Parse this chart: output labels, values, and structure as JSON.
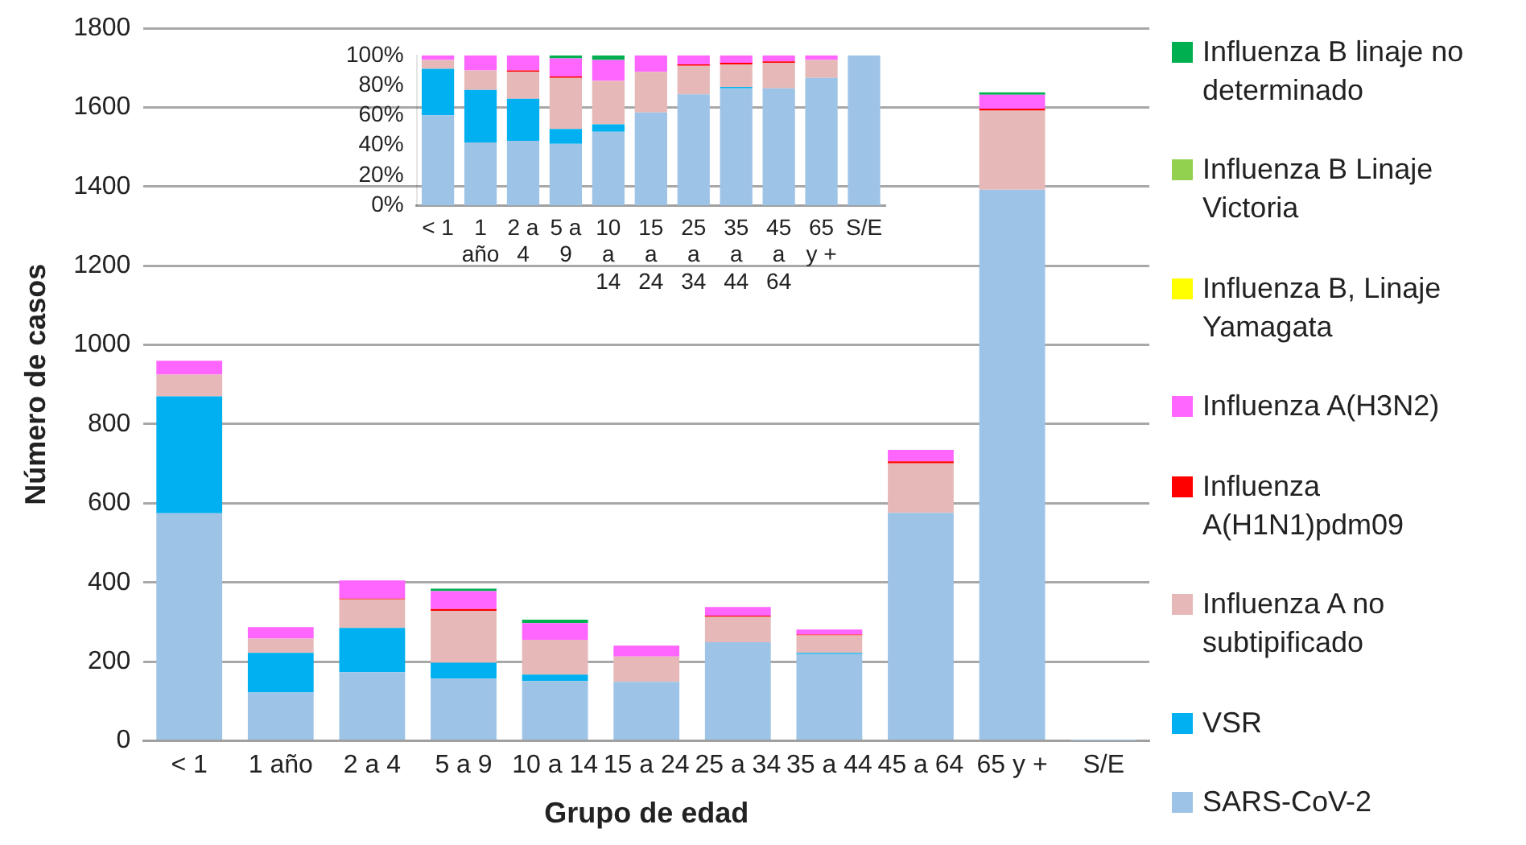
{
  "chart_data": [
    {
      "type": "bar",
      "stacked": true,
      "xlabel": "Grupo de edad",
      "ylabel": "Número de casos",
      "categories": [
        "< 1",
        "1 año",
        "2 a 4",
        "5 a 9",
        "10 a 14",
        "15 a 24",
        "25 a 34",
        "35 a 44",
        "45 a 64",
        "65 y +",
        "S/E"
      ],
      "ylim": [
        0,
        1800
      ],
      "yticks": [
        0,
        200,
        400,
        600,
        800,
        1000,
        1200,
        1400,
        1600,
        1800
      ],
      "grid": "y",
      "legend": "right",
      "series": [
        {
          "name": "SARS-CoV-2",
          "color": "#9dc3e6",
          "values": [
            575,
            122,
            173,
            157,
            151,
            149,
            249,
            219,
            576,
            1392,
            1
          ]
        },
        {
          "name": "VSR",
          "color": "#00b0f0",
          "values": [
            295,
            100,
            112,
            40,
            16,
            0,
            0,
            3,
            0,
            0,
            0
          ]
        },
        {
          "name": "Influenza A no subtipificado",
          "color": "#e6b9b8",
          "values": [
            55,
            36,
            72,
            131,
            88,
            64,
            64,
            44,
            125,
            200,
            0
          ]
        },
        {
          "name": "Influenza A(H1N1)pdm09",
          "color": "#ff0000",
          "values": [
            0,
            0,
            2,
            5,
            0,
            0,
            3,
            2,
            5,
            5,
            0
          ]
        },
        {
          "name": "Influenza A(H3N2)",
          "color": "#ff66ff",
          "values": [
            35,
            29,
            46,
            45,
            42,
            27,
            22,
            13,
            29,
            35,
            0
          ]
        },
        {
          "name": "Influenza B, Linaje Yamagata",
          "color": "#ffff00",
          "values": [
            0,
            0,
            0,
            0,
            0,
            0,
            0,
            0,
            0,
            0,
            0
          ]
        },
        {
          "name": "Influenza B Linaje Victoria",
          "color": "#92d050",
          "values": [
            0,
            0,
            0,
            0,
            0,
            0,
            0,
            0,
            0,
            0,
            0
          ]
        },
        {
          "name": "Influenza B linaje no determinado",
          "color": "#00b050",
          "values": [
            0,
            0,
            0,
            6,
            9,
            0,
            0,
            0,
            0,
            6,
            0
          ]
        }
      ]
    },
    {
      "type": "bar",
      "stacked": true,
      "categories": [
        "< 1",
        "1 año",
        "2 a 4",
        "5 a 9",
        "10 a 14",
        "15 a 24",
        "25 a 34",
        "35 a 44",
        "45 a 64",
        "65 y +",
        "S/E"
      ],
      "ylim": [
        0,
        100
      ],
      "yticks": [
        {
          "value": 0,
          "label": "0%"
        },
        {
          "value": 20,
          "label": "20%"
        },
        {
          "value": 40,
          "label": "40%"
        },
        {
          "value": 60,
          "label": "60%"
        },
        {
          "value": 80,
          "label": "80%"
        },
        {
          "value": 100,
          "label": "100%"
        }
      ],
      "series": [
        {
          "color": "#9dc3e6",
          "values": [
            60,
            42,
            43,
            41,
            49,
            62,
            74,
            78,
            78,
            85,
            100
          ]
        },
        {
          "color": "#00b0f0",
          "values": [
            31,
            35,
            28,
            10,
            5,
            0,
            0,
            1,
            0,
            0,
            0
          ]
        },
        {
          "color": "#e6b9b8",
          "values": [
            6,
            13,
            18,
            34,
            29,
            27,
            19,
            15,
            17,
            12,
            0
          ]
        },
        {
          "color": "#ff0000",
          "values": [
            0,
            0,
            1,
            1,
            0,
            0,
            1,
            1,
            1,
            null,
            0
          ]
        },
        {
          "color": "#ff66ff",
          "values": [
            3,
            10,
            10,
            12,
            14,
            11,
            6,
            5,
            4,
            3,
            0
          ]
        },
        {
          "color": "#ffff00",
          "values": [
            0,
            0,
            0,
            0,
            0,
            0,
            0,
            0,
            0,
            0,
            0
          ]
        },
        {
          "color": "#92d050",
          "values": [
            0,
            0,
            0,
            0,
            0,
            0,
            0,
            0,
            0,
            0,
            0
          ]
        },
        {
          "color": "#00b050",
          "values": [
            0,
            0,
            0,
            2,
            3,
            0,
            0,
            0,
            0,
            null,
            0
          ]
        }
      ]
    }
  ]
}
